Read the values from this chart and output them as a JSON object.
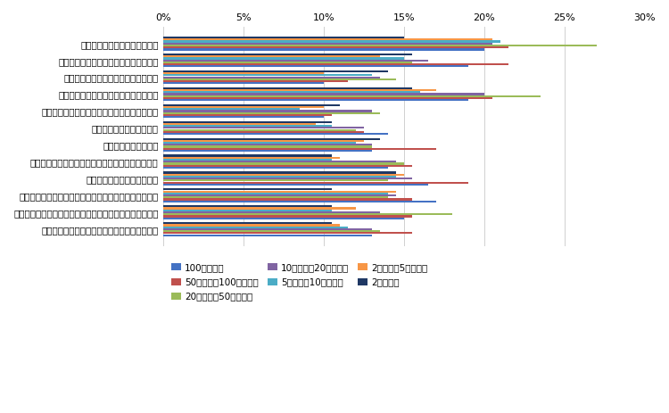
{
  "categories": [
    "助成金や補助金などの財源獲得",
    "モデル事業や国家戦略特区などへの採択",
    "事務・事業の再編・整理、廃止・統合",
    "民間委託の推進や指定管理者制度の活用",
    "業務の見直しや内部管理業務の効率化・集約化",
    "業務量に見合った人員配置",
    "専門人材の育成・配置",
    "公務外人材の活用（中途採用や兼業・副業の活用）",
    "地域住民や民間企業との連携",
    "業務のデジタル化（ペーパーレス化、クラウド化など）",
    "テクノロジーの活用（市販サービス・アプリの活用など）",
    "行政が取得している／取得できるデータの活用"
  ],
  "series": [
    {
      "label": "100万人以上",
      "color": "#4472c4",
      "values": [
        20.0,
        19.0,
        10.0,
        19.0,
        10.0,
        14.0,
        13.0,
        14.0,
        16.5,
        17.0,
        15.0,
        13.0
      ]
    },
    {
      "label": "50万人以上100万人未満",
      "color": "#c0504d",
      "values": [
        21.5,
        21.5,
        11.5,
        20.5,
        10.5,
        12.5,
        17.0,
        15.5,
        19.0,
        15.5,
        15.5,
        15.5
      ]
    },
    {
      "label": "20万人以上50万人未満",
      "color": "#9bbb59",
      "values": [
        27.0,
        15.5,
        14.5,
        23.5,
        13.5,
        12.0,
        13.0,
        15.0,
        14.0,
        14.0,
        18.0,
        13.5
      ]
    },
    {
      "label": "10万人以上20万人未満",
      "color": "#8064a2",
      "values": [
        20.5,
        16.5,
        13.5,
        20.0,
        13.0,
        12.5,
        13.0,
        14.5,
        15.5,
        14.5,
        13.5,
        13.0
      ]
    },
    {
      "label": "5万人以上10万人未満",
      "color": "#4bacc6",
      "values": [
        21.0,
        15.0,
        13.0,
        16.0,
        8.5,
        10.5,
        12.0,
        10.5,
        14.5,
        14.0,
        10.5,
        11.5
      ]
    },
    {
      "label": "2万人以上5万人未満",
      "color": "#f79646",
      "values": [
        20.5,
        13.5,
        10.0,
        17.0,
        10.0,
        9.5,
        12.5,
        11.0,
        15.0,
        14.5,
        12.0,
        11.0
      ]
    },
    {
      "label": "2万人未満",
      "color": "#1f3864",
      "values": [
        15.0,
        15.5,
        14.0,
        15.5,
        11.0,
        10.5,
        13.5,
        10.5,
        14.5,
        10.5,
        10.5,
        10.5
      ]
    }
  ],
  "xlim": [
    0,
    30
  ],
  "xticks": [
    0,
    5,
    10,
    15,
    20,
    25,
    30
  ],
  "xticklabels": [
    "0%",
    "5%",
    "10%",
    "15%",
    "20%",
    "25%",
    "30%"
  ],
  "background_color": "#ffffff",
  "grid_color": "#d0d0d0"
}
